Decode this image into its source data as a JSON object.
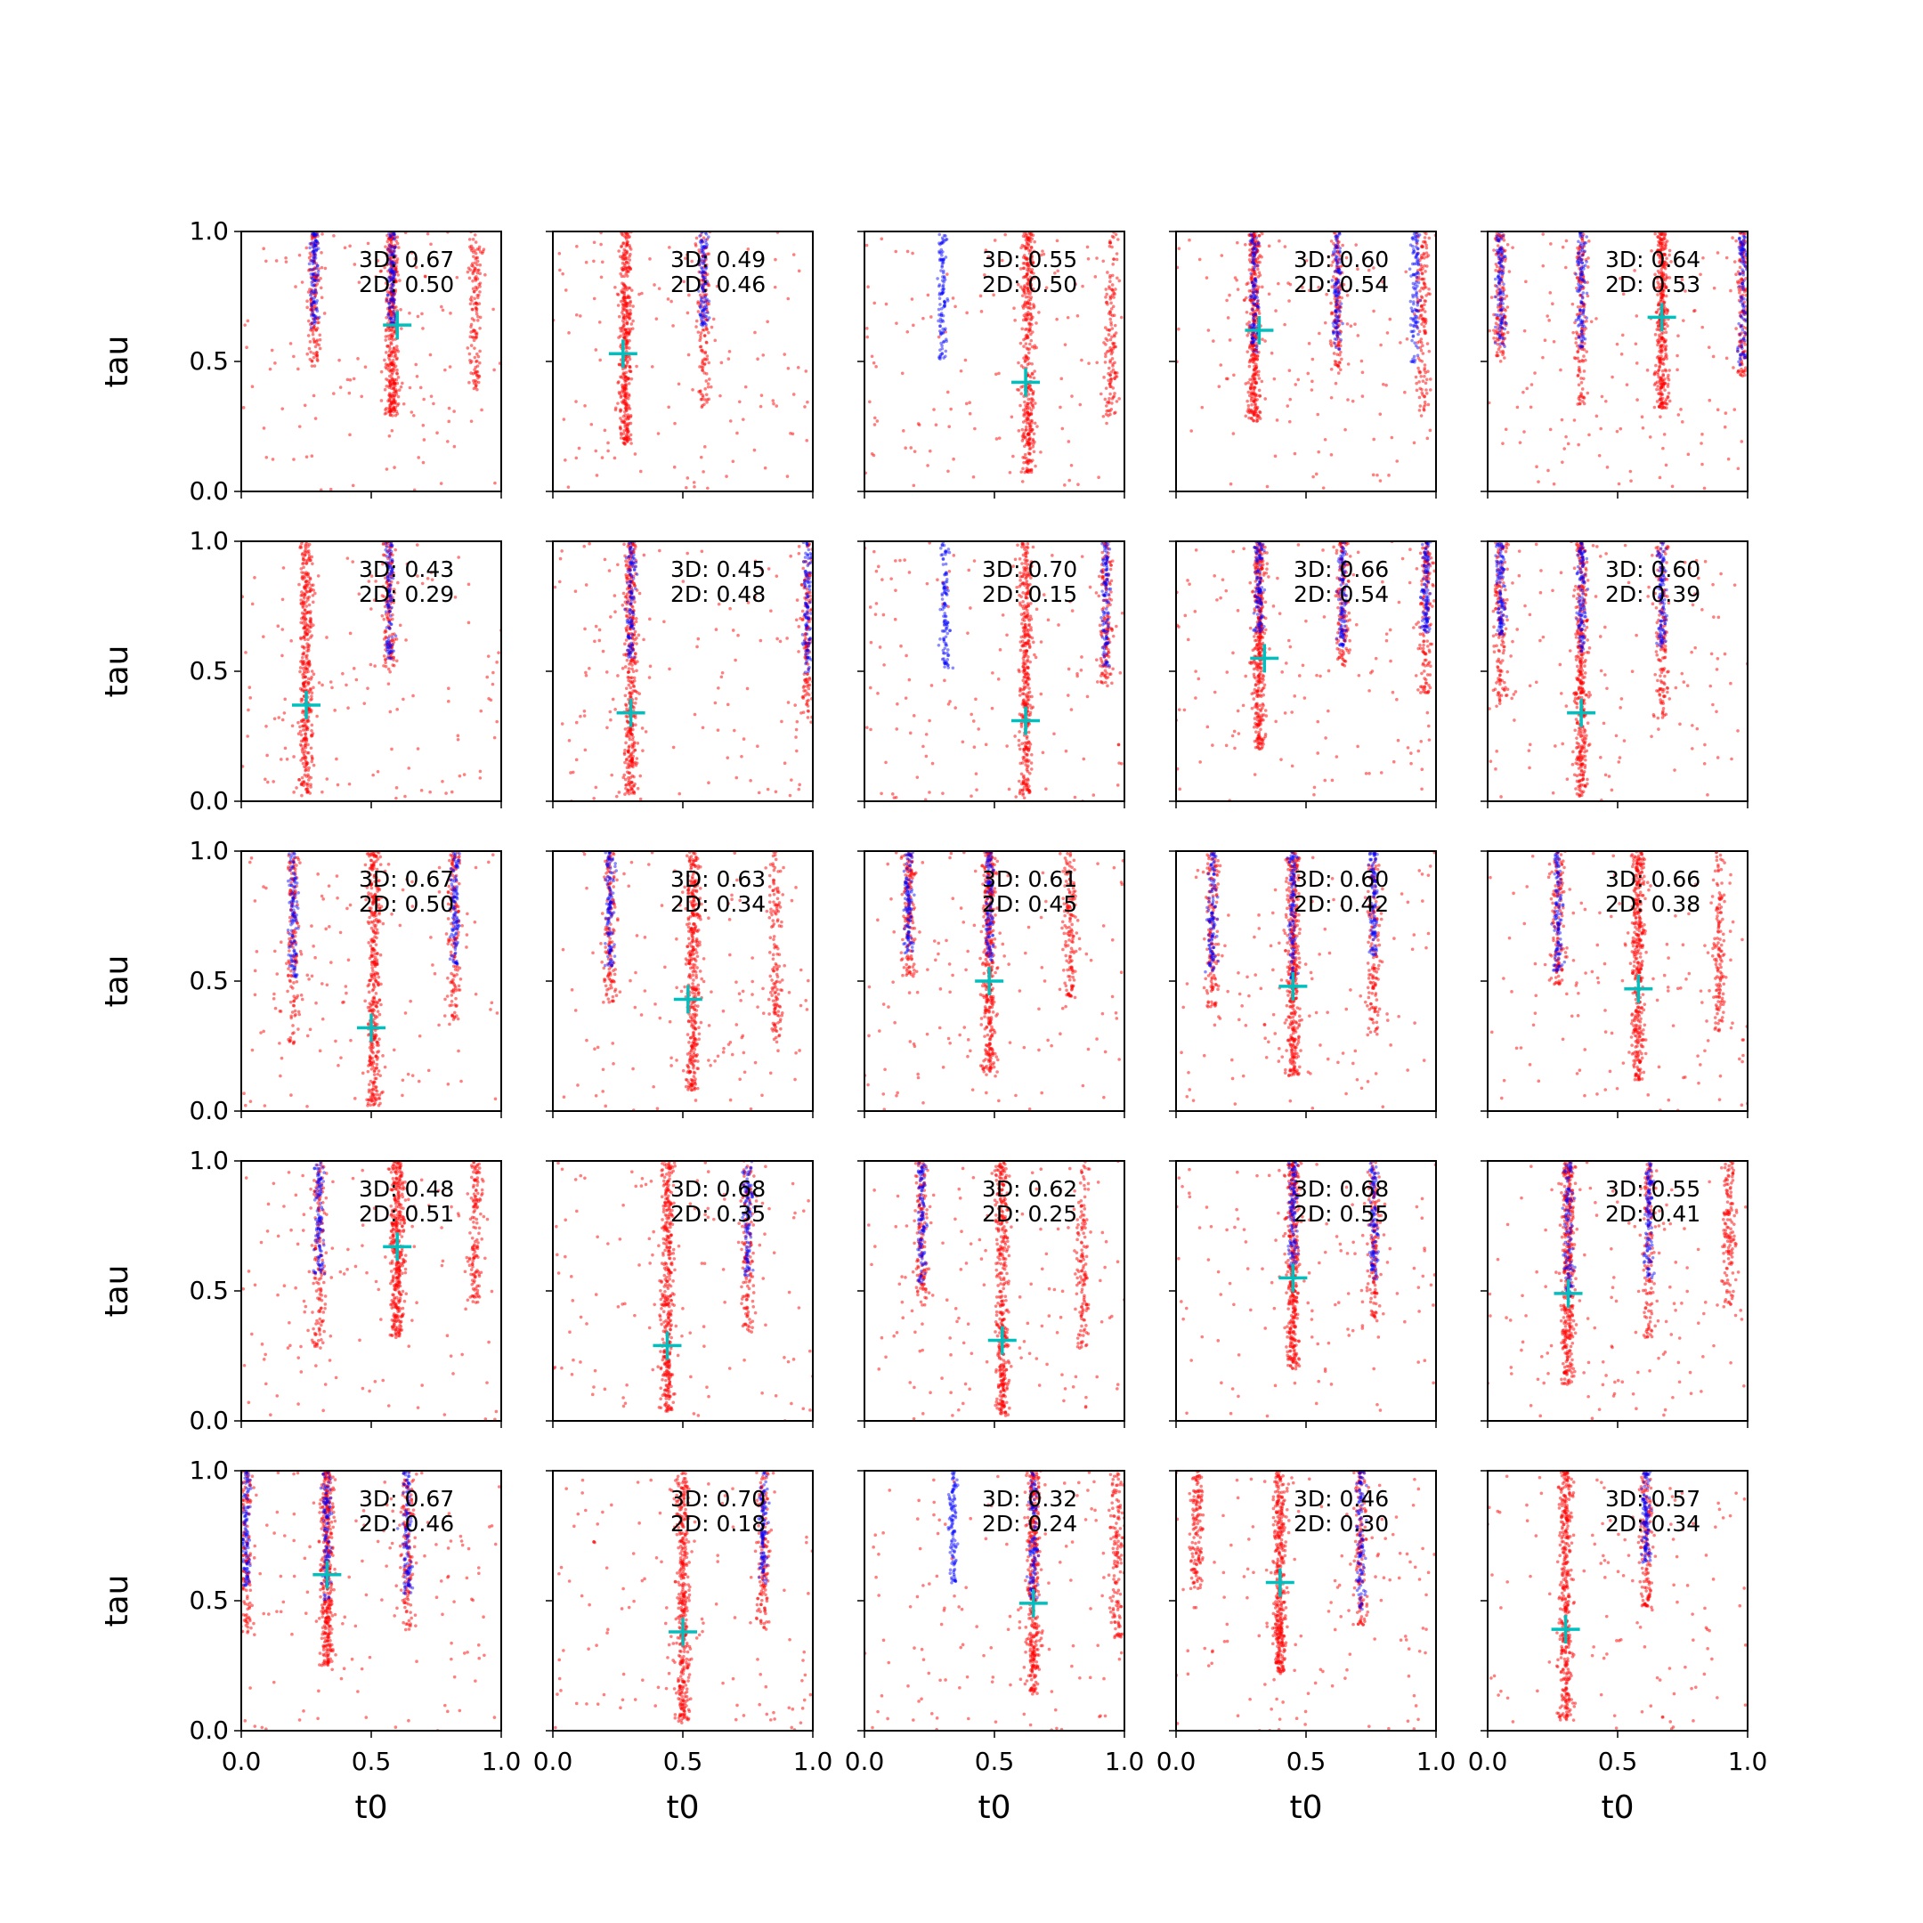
{
  "figure": {
    "rows": 5,
    "cols": 5
  },
  "chart_data": {
    "type": "scatter",
    "xlabel": "t0",
    "ylabel": "tau",
    "xlim": [
      0,
      1
    ],
    "ylim": [
      0,
      1
    ],
    "xticks": [
      0.0,
      0.5,
      1.0
    ],
    "yticks": [
      0.0,
      0.5,
      1.0
    ],
    "tick_labels": [
      "0.0",
      "0.5",
      "1.0"
    ],
    "grid": false,
    "series_colors": {
      "red": "#ff0000",
      "blue": "#0000ff",
      "marker": "#00bfbf"
    },
    "panels": [
      {
        "bands": [
          0.28,
          0.58,
          0.9
        ],
        "blue_bands": [
          0.28,
          0.58
        ],
        "marker": [
          0.6,
          0.64
        ],
        "annot": [
          "3D: 0.67",
          "2D: 0.50"
        ]
      },
      {
        "bands": [
          0.28,
          0.58
        ],
        "blue_bands": [
          0.58
        ],
        "marker": [
          0.27,
          0.53
        ],
        "annot": [
          "3D: 0.49",
          "2D: 0.46"
        ]
      },
      {
        "bands": [
          0.63,
          0.95
        ],
        "blue_bands": [
          0.3
        ],
        "marker": [
          0.62,
          0.42
        ],
        "annot": [
          "3D: 0.55",
          "2D: 0.50"
        ]
      },
      {
        "bands": [
          0.3,
          0.62,
          0.95
        ],
        "blue_bands": [
          0.3,
          0.62,
          0.92
        ],
        "marker": [
          0.32,
          0.62
        ],
        "annot": [
          "3D: 0.60",
          "2D: 0.54"
        ]
      },
      {
        "bands": [
          0.05,
          0.36,
          0.67,
          0.98
        ],
        "blue_bands": [
          0.05,
          0.36,
          0.98
        ],
        "marker": [
          0.67,
          0.67
        ],
        "annot": [
          "3D: 0.64",
          "2D: 0.53"
        ]
      },
      {
        "bands": [
          0.25,
          0.57
        ],
        "blue_bands": [
          0.57
        ],
        "marker": [
          0.25,
          0.37
        ],
        "annot": [
          "3D: 0.43",
          "2D: 0.29"
        ]
      },
      {
        "bands": [
          0.3,
          0.98
        ],
        "blue_bands": [
          0.3,
          0.98
        ],
        "marker": [
          0.3,
          0.34
        ],
        "annot": [
          "3D: 0.45",
          "2D: 0.48"
        ]
      },
      {
        "bands": [
          0.62,
          0.93
        ],
        "blue_bands": [
          0.31,
          0.93
        ],
        "marker": [
          0.62,
          0.31
        ],
        "annot": [
          "3D: 0.70",
          "2D: 0.15"
        ]
      },
      {
        "bands": [
          0.32,
          0.64,
          0.96
        ],
        "blue_bands": [
          0.32,
          0.64,
          0.96
        ],
        "marker": [
          0.34,
          0.55
        ],
        "annot": [
          "3D: 0.66",
          "2D: 0.54"
        ]
      },
      {
        "bands": [
          0.05,
          0.36,
          0.67
        ],
        "blue_bands": [
          0.05,
          0.36,
          0.67
        ],
        "marker": [
          0.36,
          0.34
        ],
        "annot": [
          "3D: 0.60",
          "2D: 0.39"
        ]
      },
      {
        "bands": [
          0.2,
          0.51,
          0.82
        ],
        "blue_bands": [
          0.2,
          0.82
        ],
        "marker": [
          0.5,
          0.32
        ],
        "annot": [
          "3D: 0.67",
          "2D: 0.50"
        ]
      },
      {
        "bands": [
          0.22,
          0.54,
          0.86
        ],
        "blue_bands": [
          0.22
        ],
        "marker": [
          0.52,
          0.43
        ],
        "annot": [
          "3D: 0.63",
          "2D: 0.34"
        ]
      },
      {
        "bands": [
          0.17,
          0.48,
          0.79
        ],
        "blue_bands": [
          0.17,
          0.48
        ],
        "marker": [
          0.48,
          0.5
        ],
        "annot": [
          "3D: 0.61",
          "2D: 0.45"
        ]
      },
      {
        "bands": [
          0.14,
          0.45,
          0.76
        ],
        "blue_bands": [
          0.14,
          0.45,
          0.76
        ],
        "marker": [
          0.45,
          0.48
        ],
        "annot": [
          "3D: 0.60",
          "2D: 0.42"
        ]
      },
      {
        "bands": [
          0.27,
          0.58,
          0.89
        ],
        "blue_bands": [
          0.27
        ],
        "marker": [
          0.58,
          0.47
        ],
        "annot": [
          "3D: 0.66",
          "2D: 0.38"
        ]
      },
      {
        "bands": [
          0.3,
          0.6,
          0.9
        ],
        "blue_bands": [
          0.3
        ],
        "marker": [
          0.6,
          0.67
        ],
        "annot": [
          "3D: 0.48",
          "2D: 0.51"
        ]
      },
      {
        "bands": [
          0.44,
          0.75
        ],
        "blue_bands": [
          0.75
        ],
        "marker": [
          0.44,
          0.29
        ],
        "annot": [
          "3D: 0.68",
          "2D: 0.35"
        ]
      },
      {
        "bands": [
          0.22,
          0.53,
          0.84
        ],
        "blue_bands": [
          0.22
        ],
        "marker": [
          0.53,
          0.31
        ],
        "annot": [
          "3D: 0.62",
          "2D: 0.25"
        ]
      },
      {
        "bands": [
          0.45,
          0.76
        ],
        "blue_bands": [
          0.45,
          0.76
        ],
        "marker": [
          0.45,
          0.55
        ],
        "annot": [
          "3D: 0.68",
          "2D: 0.55"
        ]
      },
      {
        "bands": [
          0.31,
          0.62,
          0.93
        ],
        "blue_bands": [
          0.31,
          0.62
        ],
        "marker": [
          0.31,
          0.49
        ],
        "annot": [
          "3D: 0.55",
          "2D: 0.41"
        ]
      },
      {
        "bands": [
          0.02,
          0.33,
          0.64
        ],
        "blue_bands": [
          0.02,
          0.33,
          0.64
        ],
        "marker": [
          0.33,
          0.6
        ],
        "annot": [
          "3D: 0.67",
          "2D: 0.46"
        ]
      },
      {
        "bands": [
          0.5,
          0.81
        ],
        "blue_bands": [
          0.81
        ],
        "marker": [
          0.5,
          0.38
        ],
        "annot": [
          "3D: 0.70",
          "2D: 0.18"
        ]
      },
      {
        "bands": [
          0.65,
          0.97
        ],
        "blue_bands": [
          0.34,
          0.65
        ],
        "marker": [
          0.65,
          0.49
        ],
        "annot": [
          "3D: 0.32",
          "2D: 0.24"
        ]
      },
      {
        "bands": [
          0.08,
          0.4,
          0.71
        ],
        "blue_bands": [
          0.71
        ],
        "marker": [
          0.4,
          0.57
        ],
        "annot": [
          "3D: 0.46",
          "2D: 0.30"
        ]
      },
      {
        "bands": [
          0.3,
          0.61
        ],
        "blue_bands": [
          0.61
        ],
        "marker": [
          0.3,
          0.39
        ],
        "annot": [
          "3D: 0.57",
          "2D: 0.34"
        ]
      }
    ]
  }
}
